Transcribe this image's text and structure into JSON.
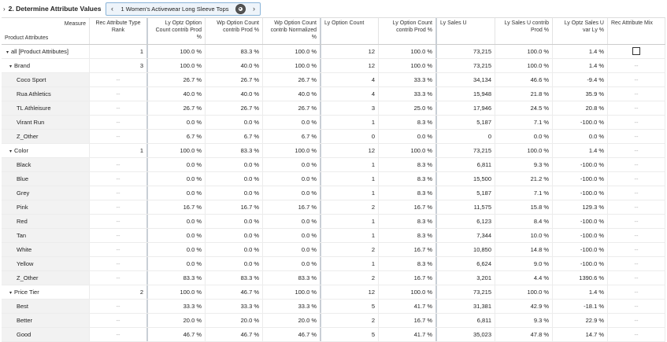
{
  "header": {
    "title": "2. Determine Attribute Values",
    "selector_label": "1 Women's Activewear Long Sleeve Tops"
  },
  "columns": {
    "measure": "Measure",
    "product_attributes": "Product Attributes",
    "rec_rank": "Rec Attribute Type Rank",
    "ly_optz_count": "Ly Optz Option Count contrib Prod %",
    "wp_count_prod": "Wp Option Count contrib Prod %",
    "wp_count_norm": "Wp Option Count contrib Normalized %",
    "ly_option_count": "Ly Option Count",
    "ly_option_count_prod": "Ly Option Count contrib Prod %",
    "ly_sales_u": "Ly Sales U",
    "ly_sales_u_prod": "Ly Sales U contrib Prod %",
    "ly_optz_sales_var": "Ly Optz Sales U var Ly %",
    "rec_mix": "Rec Attribute Mix"
  },
  "dash": "--",
  "rows": [
    {
      "label": "all [Product Attributes]",
      "level": 0,
      "toggle": "▾",
      "rank": "1",
      "a": "100.0 %",
      "b": "83.3 %",
      "c": "100.0 %",
      "d": "12",
      "e": "100.0 %",
      "f": "73,215",
      "g": "100.0 %",
      "h": "1.4 %",
      "mix": "checkbox"
    },
    {
      "label": "Brand",
      "level": 1,
      "toggle": "▾",
      "rank": "3",
      "a": "100.0 %",
      "b": "40.0 %",
      "c": "100.0 %",
      "d": "12",
      "e": "100.0 %",
      "f": "73,215",
      "g": "100.0 %",
      "h": "1.4 %",
      "mix": "--"
    },
    {
      "label": "Coco Sport",
      "level": 2,
      "toggle": "",
      "rank": "--",
      "a": "26.7 %",
      "b": "26.7 %",
      "c": "26.7 %",
      "d": "4",
      "e": "33.3 %",
      "f": "34,134",
      "g": "46.6 %",
      "h": "-9.4 %",
      "mix": "--"
    },
    {
      "label": "Rua Athletics",
      "level": 2,
      "toggle": "",
      "rank": "--",
      "a": "40.0 %",
      "b": "40.0 %",
      "c": "40.0 %",
      "d": "4",
      "e": "33.3 %",
      "f": "15,948",
      "g": "21.8 %",
      "h": "35.9 %",
      "mix": "--"
    },
    {
      "label": "TL Athleisure",
      "level": 2,
      "toggle": "",
      "rank": "--",
      "a": "26.7 %",
      "b": "26.7 %",
      "c": "26.7 %",
      "d": "3",
      "e": "25.0 %",
      "f": "17,946",
      "g": "24.5 %",
      "h": "20.8 %",
      "mix": "--"
    },
    {
      "label": "Virant Run",
      "level": 2,
      "toggle": "",
      "rank": "--",
      "a": "0.0 %",
      "b": "0.0 %",
      "c": "0.0 %",
      "d": "1",
      "e": "8.3 %",
      "f": "5,187",
      "g": "7.1 %",
      "h": "-100.0 %",
      "mix": "--"
    },
    {
      "label": "Z_Other",
      "level": 2,
      "toggle": "",
      "rank": "--",
      "a": "6.7 %",
      "b": "6.7 %",
      "c": "6.7 %",
      "d": "0",
      "e": "0.0 %",
      "f": "0",
      "g": "0.0 %",
      "h": "0.0 %",
      "mix": "--"
    },
    {
      "label": "Color",
      "level": 1,
      "toggle": "▾",
      "rank": "1",
      "a": "100.0 %",
      "b": "83.3 %",
      "c": "100.0 %",
      "d": "12",
      "e": "100.0 %",
      "f": "73,215",
      "g": "100.0 %",
      "h": "1.4 %",
      "mix": "--"
    },
    {
      "label": "Black",
      "level": 2,
      "toggle": "",
      "rank": "--",
      "a": "0.0 %",
      "b": "0.0 %",
      "c": "0.0 %",
      "d": "1",
      "e": "8.3 %",
      "f": "6,811",
      "g": "9.3 %",
      "h": "-100.0 %",
      "mix": "--"
    },
    {
      "label": "Blue",
      "level": 2,
      "toggle": "",
      "rank": "--",
      "a": "0.0 %",
      "b": "0.0 %",
      "c": "0.0 %",
      "d": "1",
      "e": "8.3 %",
      "f": "15,500",
      "g": "21.2 %",
      "h": "-100.0 %",
      "mix": "--"
    },
    {
      "label": "Grey",
      "level": 2,
      "toggle": "",
      "rank": "--",
      "a": "0.0 %",
      "b": "0.0 %",
      "c": "0.0 %",
      "d": "1",
      "e": "8.3 %",
      "f": "5,187",
      "g": "7.1 %",
      "h": "-100.0 %",
      "mix": "--"
    },
    {
      "label": "Pink",
      "level": 2,
      "toggle": "",
      "rank": "--",
      "a": "16.7 %",
      "b": "16.7 %",
      "c": "16.7 %",
      "d": "2",
      "e": "16.7 %",
      "f": "11,575",
      "g": "15.8 %",
      "h": "129.3 %",
      "mix": "--"
    },
    {
      "label": "Red",
      "level": 2,
      "toggle": "",
      "rank": "--",
      "a": "0.0 %",
      "b": "0.0 %",
      "c": "0.0 %",
      "d": "1",
      "e": "8.3 %",
      "f": "6,123",
      "g": "8.4 %",
      "h": "-100.0 %",
      "mix": "--"
    },
    {
      "label": "Tan",
      "level": 2,
      "toggle": "",
      "rank": "--",
      "a": "0.0 %",
      "b": "0.0 %",
      "c": "0.0 %",
      "d": "1",
      "e": "8.3 %",
      "f": "7,344",
      "g": "10.0 %",
      "h": "-100.0 %",
      "mix": "--"
    },
    {
      "label": "White",
      "level": 2,
      "toggle": "",
      "rank": "--",
      "a": "0.0 %",
      "b": "0.0 %",
      "c": "0.0 %",
      "d": "2",
      "e": "16.7 %",
      "f": "10,850",
      "g": "14.8 %",
      "h": "-100.0 %",
      "mix": "--"
    },
    {
      "label": "Yellow",
      "level": 2,
      "toggle": "",
      "rank": "--",
      "a": "0.0 %",
      "b": "0.0 %",
      "c": "0.0 %",
      "d": "1",
      "e": "8.3 %",
      "f": "6,624",
      "g": "9.0 %",
      "h": "-100.0 %",
      "mix": "--"
    },
    {
      "label": "Z_Other",
      "level": 2,
      "toggle": "",
      "rank": "--",
      "a": "83.3 %",
      "b": "83.3 %",
      "c": "83.3 %",
      "d": "2",
      "e": "16.7 %",
      "f": "3,201",
      "g": "4.4 %",
      "h": "1390.6 %",
      "mix": "--"
    },
    {
      "label": "Price Tier",
      "level": 1,
      "toggle": "▾",
      "rank": "2",
      "a": "100.0 %",
      "b": "46.7 %",
      "c": "100.0 %",
      "d": "12",
      "e": "100.0 %",
      "f": "73,215",
      "g": "100.0 %",
      "h": "1.4 %",
      "mix": "--"
    },
    {
      "label": "Best",
      "level": 2,
      "toggle": "",
      "rank": "--",
      "a": "33.3 %",
      "b": "33.3 %",
      "c": "33.3 %",
      "d": "5",
      "e": "41.7 %",
      "f": "31,381",
      "g": "42.9 %",
      "h": "-18.1 %",
      "mix": "--"
    },
    {
      "label": "Better",
      "level": 2,
      "toggle": "",
      "rank": "--",
      "a": "20.0 %",
      "b": "20.0 %",
      "c": "20.0 %",
      "d": "2",
      "e": "16.7 %",
      "f": "6,811",
      "g": "9.3 %",
      "h": "22.9 %",
      "mix": "--"
    },
    {
      "label": "Good",
      "level": 2,
      "toggle": "",
      "rank": "--",
      "a": "46.7 %",
      "b": "46.7 %",
      "c": "46.7 %",
      "d": "5",
      "e": "41.7 %",
      "f": "35,023",
      "g": "47.8 %",
      "h": "14.7 %",
      "mix": "--"
    }
  ]
}
